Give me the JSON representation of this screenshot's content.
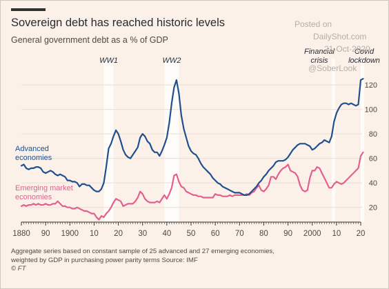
{
  "header": {
    "title": "Sovereign debt has reached historic levels",
    "subtitle": "General government debt as a % of GDP"
  },
  "footnote": {
    "line1": "Aggregate series based on constant sample of 25 advanced and 27 emerging economies,",
    "line2": "weighted by GDP in purchasing power parity terms   Source: IMF",
    "line3": "© FT"
  },
  "watermark": {
    "line1": "Posted on",
    "line2": "DailyShot.com",
    "line3": "21-Oct-2020",
    "line4": "@SoberLook"
  },
  "chart_data": {
    "type": "line",
    "xlim": [
      1880,
      2020
    ],
    "ylim": [
      8,
      133
    ],
    "x_ticks": [
      1880,
      1890,
      1900,
      1910,
      1920,
      1930,
      1940,
      1950,
      1960,
      1970,
      1980,
      1990,
      2000,
      2010,
      2020
    ],
    "x_tick_labels": [
      "1880",
      "90",
      "1900",
      "10",
      "20",
      "30",
      "40",
      "50",
      "60",
      "70",
      "80",
      "90",
      "2000",
      "10",
      "20"
    ],
    "y_ticks": [
      20,
      40,
      60,
      80,
      100,
      120
    ],
    "y_tick_labels": [
      "20",
      "40",
      "60",
      "80",
      "100",
      "120"
    ],
    "grid": "horizontal",
    "series": [
      {
        "name": "Advanced economies",
        "color": "#1e4f8e",
        "points": [
          [
            1880,
            54
          ],
          [
            1881,
            55
          ],
          [
            1882,
            52
          ],
          [
            1883,
            51
          ],
          [
            1884,
            52
          ],
          [
            1885,
            52
          ],
          [
            1886,
            53
          ],
          [
            1887,
            53
          ],
          [
            1888,
            52
          ],
          [
            1889,
            49
          ],
          [
            1890,
            48
          ],
          [
            1891,
            49
          ],
          [
            1892,
            50
          ],
          [
            1893,
            49
          ],
          [
            1894,
            47
          ],
          [
            1895,
            46
          ],
          [
            1896,
            47
          ],
          [
            1897,
            46
          ],
          [
            1898,
            45
          ],
          [
            1899,
            42
          ],
          [
            1900,
            42
          ],
          [
            1901,
            41
          ],
          [
            1902,
            41
          ],
          [
            1903,
            40
          ],
          [
            1904,
            37
          ],
          [
            1905,
            39
          ],
          [
            1906,
            39
          ],
          [
            1907,
            38
          ],
          [
            1908,
            38
          ],
          [
            1909,
            36
          ],
          [
            1910,
            34
          ],
          [
            1911,
            33
          ],
          [
            1912,
            33
          ],
          [
            1913,
            35
          ],
          [
            1914,
            40
          ],
          [
            1915,
            53
          ],
          [
            1916,
            68
          ],
          [
            1917,
            72
          ],
          [
            1918,
            78
          ],
          [
            1919,
            83
          ],
          [
            1920,
            80
          ],
          [
            1921,
            74
          ],
          [
            1922,
            67
          ],
          [
            1923,
            63
          ],
          [
            1924,
            61
          ],
          [
            1925,
            60
          ],
          [
            1926,
            63
          ],
          [
            1927,
            66
          ],
          [
            1928,
            69
          ],
          [
            1929,
            77
          ],
          [
            1930,
            80
          ],
          [
            1931,
            78
          ],
          [
            1932,
            74
          ],
          [
            1933,
            72
          ],
          [
            1934,
            67
          ],
          [
            1935,
            65
          ],
          [
            1936,
            65
          ],
          [
            1937,
            62
          ],
          [
            1938,
            66
          ],
          [
            1939,
            71
          ],
          [
            1940,
            77
          ],
          [
            1941,
            89
          ],
          [
            1942,
            105
          ],
          [
            1943,
            118
          ],
          [
            1944,
            124
          ],
          [
            1945,
            113
          ],
          [
            1946,
            95
          ],
          [
            1947,
            84
          ],
          [
            1948,
            77
          ],
          [
            1949,
            70
          ],
          [
            1950,
            66
          ],
          [
            1951,
            64
          ],
          [
            1952,
            63
          ],
          [
            1953,
            60
          ],
          [
            1954,
            56
          ],
          [
            1955,
            53
          ],
          [
            1956,
            51
          ],
          [
            1957,
            49
          ],
          [
            1958,
            47
          ],
          [
            1959,
            44
          ],
          [
            1960,
            42
          ],
          [
            1961,
            40
          ],
          [
            1962,
            39
          ],
          [
            1963,
            37
          ],
          [
            1964,
            36
          ],
          [
            1965,
            35
          ],
          [
            1966,
            34
          ],
          [
            1967,
            33
          ],
          [
            1968,
            32
          ],
          [
            1969,
            32
          ],
          [
            1970,
            32
          ],
          [
            1971,
            31
          ],
          [
            1972,
            30
          ],
          [
            1973,
            30
          ],
          [
            1974,
            31
          ],
          [
            1975,
            33
          ],
          [
            1976,
            35
          ],
          [
            1977,
            37
          ],
          [
            1978,
            40
          ],
          [
            1979,
            42
          ],
          [
            1980,
            45
          ],
          [
            1981,
            47
          ],
          [
            1982,
            50
          ],
          [
            1983,
            52
          ],
          [
            1984,
            54
          ],
          [
            1985,
            57
          ],
          [
            1986,
            58
          ],
          [
            1987,
            58
          ],
          [
            1988,
            58
          ],
          [
            1989,
            59
          ],
          [
            1990,
            61
          ],
          [
            1991,
            64
          ],
          [
            1992,
            67
          ],
          [
            1993,
            69
          ],
          [
            1994,
            71
          ],
          [
            1995,
            72
          ],
          [
            1996,
            72
          ],
          [
            1997,
            72
          ],
          [
            1998,
            71
          ],
          [
            1999,
            70
          ],
          [
            2000,
            67
          ],
          [
            2001,
            68
          ],
          [
            2002,
            70
          ],
          [
            2003,
            72
          ],
          [
            2004,
            73
          ],
          [
            2005,
            75
          ],
          [
            2006,
            74
          ],
          [
            2007,
            73
          ],
          [
            2008,
            78
          ],
          [
            2009,
            90
          ],
          [
            2010,
            97
          ],
          [
            2011,
            101
          ],
          [
            2012,
            104
          ],
          [
            2013,
            105
          ],
          [
            2014,
            105
          ],
          [
            2015,
            104
          ],
          [
            2016,
            105
          ],
          [
            2017,
            104
          ],
          [
            2018,
            103
          ],
          [
            2019,
            104
          ],
          [
            2020,
            124
          ],
          [
            2021,
            125
          ]
        ]
      },
      {
        "name": "Emerging market economies",
        "color": "#e25f8e",
        "points": [
          [
            1880,
            21
          ],
          [
            1881,
            22
          ],
          [
            1882,
            21
          ],
          [
            1883,
            22
          ],
          [
            1884,
            22
          ],
          [
            1885,
            23
          ],
          [
            1886,
            22
          ],
          [
            1887,
            23
          ],
          [
            1888,
            22
          ],
          [
            1889,
            22
          ],
          [
            1890,
            23
          ],
          [
            1891,
            22
          ],
          [
            1892,
            22
          ],
          [
            1893,
            23
          ],
          [
            1894,
            23
          ],
          [
            1895,
            25
          ],
          [
            1896,
            23
          ],
          [
            1897,
            21
          ],
          [
            1898,
            21
          ],
          [
            1899,
            20
          ],
          [
            1900,
            20
          ],
          [
            1901,
            19
          ],
          [
            1902,
            19
          ],
          [
            1903,
            20
          ],
          [
            1904,
            19
          ],
          [
            1905,
            18
          ],
          [
            1906,
            17
          ],
          [
            1907,
            17
          ],
          [
            1908,
            16
          ],
          [
            1909,
            15
          ],
          [
            1910,
            15
          ],
          [
            1911,
            12
          ],
          [
            1912,
            10
          ],
          [
            1913,
            13
          ],
          [
            1914,
            12
          ],
          [
            1915,
            15
          ],
          [
            1916,
            17
          ],
          [
            1917,
            20
          ],
          [
            1918,
            24
          ],
          [
            1919,
            27
          ],
          [
            1920,
            26
          ],
          [
            1921,
            25
          ],
          [
            1922,
            21
          ],
          [
            1923,
            22
          ],
          [
            1924,
            23
          ],
          [
            1925,
            23
          ],
          [
            1926,
            23
          ],
          [
            1927,
            25
          ],
          [
            1928,
            28
          ],
          [
            1929,
            33
          ],
          [
            1930,
            31
          ],
          [
            1931,
            27
          ],
          [
            1932,
            25
          ],
          [
            1933,
            24
          ],
          [
            1934,
            24
          ],
          [
            1935,
            24
          ],
          [
            1936,
            25
          ],
          [
            1937,
            24
          ],
          [
            1938,
            27
          ],
          [
            1939,
            30
          ],
          [
            1940,
            27
          ],
          [
            1941,
            31
          ],
          [
            1942,
            36
          ],
          [
            1943,
            46
          ],
          [
            1944,
            47
          ],
          [
            1945,
            41
          ],
          [
            1946,
            37
          ],
          [
            1947,
            36
          ],
          [
            1948,
            33
          ],
          [
            1949,
            32
          ],
          [
            1950,
            31
          ],
          [
            1951,
            30
          ],
          [
            1952,
            30
          ],
          [
            1953,
            29
          ],
          [
            1954,
            29
          ],
          [
            1955,
            28
          ],
          [
            1956,
            28
          ],
          [
            1957,
            28
          ],
          [
            1958,
            28
          ],
          [
            1959,
            28
          ],
          [
            1960,
            31
          ],
          [
            1961,
            30
          ],
          [
            1962,
            30
          ],
          [
            1963,
            29
          ],
          [
            1964,
            29
          ],
          [
            1965,
            29
          ],
          [
            1966,
            30
          ],
          [
            1967,
            29
          ],
          [
            1968,
            30
          ],
          [
            1969,
            30
          ],
          [
            1970,
            30
          ],
          [
            1971,
            30
          ],
          [
            1972,
            30
          ],
          [
            1973,
            31
          ],
          [
            1974,
            30
          ],
          [
            1975,
            32
          ],
          [
            1976,
            33
          ],
          [
            1977,
            36
          ],
          [
            1978,
            38
          ],
          [
            1979,
            34
          ],
          [
            1980,
            33
          ],
          [
            1981,
            35
          ],
          [
            1982,
            38
          ],
          [
            1983,
            45
          ],
          [
            1984,
            45
          ],
          [
            1985,
            43
          ],
          [
            1986,
            47
          ],
          [
            1987,
            50
          ],
          [
            1988,
            52
          ],
          [
            1989,
            53
          ],
          [
            1990,
            55
          ],
          [
            1991,
            50
          ],
          [
            1992,
            49
          ],
          [
            1993,
            48
          ],
          [
            1994,
            45
          ],
          [
            1995,
            38
          ],
          [
            1996,
            34
          ],
          [
            1997,
            33
          ],
          [
            1998,
            34
          ],
          [
            1999,
            44
          ],
          [
            2000,
            50
          ],
          [
            2001,
            50
          ],
          [
            2002,
            53
          ],
          [
            2003,
            52
          ],
          [
            2004,
            48
          ],
          [
            2005,
            44
          ],
          [
            2006,
            40
          ],
          [
            2007,
            36
          ],
          [
            2008,
            36
          ],
          [
            2009,
            39
          ],
          [
            2010,
            41
          ],
          [
            2011,
            40
          ],
          [
            2012,
            39
          ],
          [
            2013,
            40
          ],
          [
            2014,
            42
          ],
          [
            2015,
            44
          ],
          [
            2016,
            46
          ],
          [
            2017,
            48
          ],
          [
            2018,
            50
          ],
          [
            2019,
            52
          ],
          [
            2020,
            62
          ],
          [
            2021,
            65
          ]
        ]
      }
    ],
    "series_labels": [
      {
        "lines": [
          "Advanced",
          "economies"
        ],
        "series": 0
      },
      {
        "lines": [
          "Emerging market",
          "economies"
        ],
        "series": 1
      }
    ],
    "shaded_periods": [
      {
        "label": "WW1",
        "from": 1914,
        "to": 1918
      },
      {
        "label": "WW2",
        "from": 1939,
        "to": 1945
      },
      {
        "label_lines": [
          "Financial",
          "crisis"
        ],
        "from": 2008,
        "to": 2009
      },
      {
        "label_lines": [
          "Covid",
          "lockdown"
        ],
        "from": 2020,
        "to": 2020.8
      }
    ]
  }
}
